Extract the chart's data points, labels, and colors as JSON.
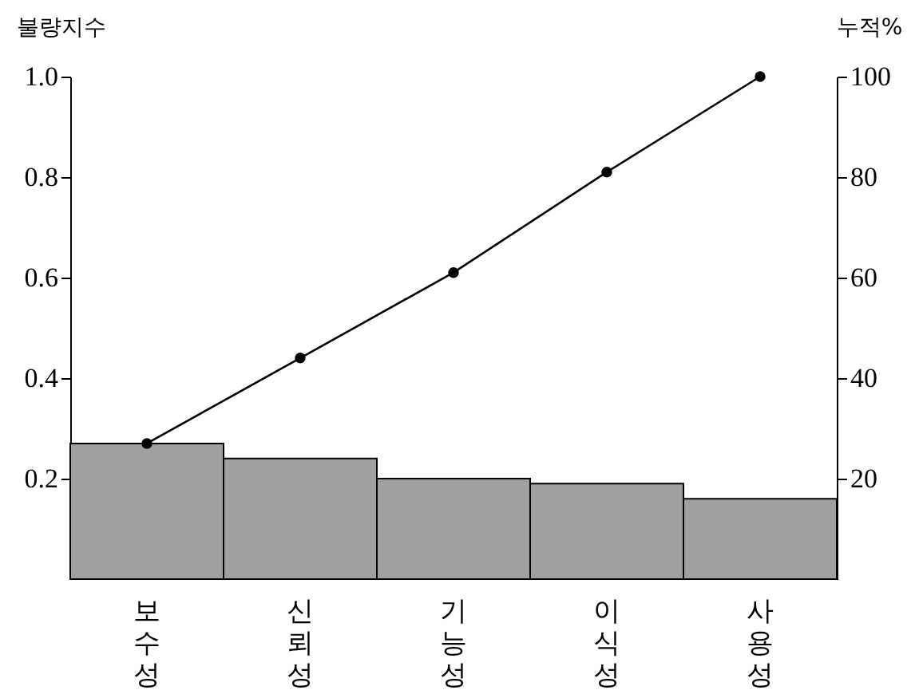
{
  "chart_data": {
    "type": "bar",
    "ylabel": "불량지수",
    "y2label": "누적%",
    "categories": [
      "보수성",
      "신뢰성",
      "기능성",
      "이식성",
      "사용성"
    ],
    "series": [
      {
        "color": "#a0a0a0",
        "values": [
          0.27,
          0.24,
          0.2,
          0.19,
          0.16
        ]
      },
      {
        "type": "line",
        "axis": "y2",
        "color": "#000000",
        "values": [
          27,
          44,
          61,
          81,
          100
        ]
      }
    ],
    "ylim": [
      0,
      1.0
    ],
    "yticks": [
      0.2,
      0.4,
      0.6,
      0.8,
      {
        "value": 1.0,
        "label": "1.0"
      }
    ],
    "y2lim": [
      0,
      100
    ],
    "y2ticks": [
      20,
      40,
      60,
      80,
      100
    ],
    "marker": "circle",
    "line_style": "solid",
    "grid": false
  }
}
